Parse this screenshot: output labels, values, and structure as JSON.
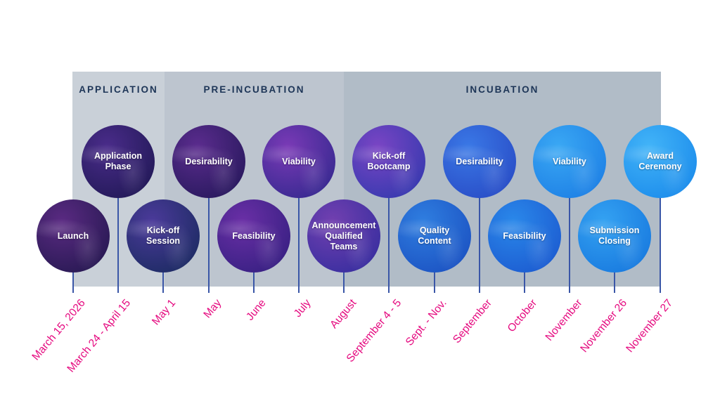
{
  "phases": [
    {
      "title": "APPLICATION",
      "color": "#c9d0d8"
    },
    {
      "title": "PRE-INCUBATION",
      "color": "#bdc5cf"
    },
    {
      "title": "INCUBATION",
      "color": "#b1bcc7"
    }
  ],
  "milestones": [
    {
      "label": "Launch",
      "date": "March 15, 2026",
      "row": "low",
      "gradient": [
        "#5a2a82",
        "#2a1a55"
      ]
    },
    {
      "label": "Application\nPhase",
      "date": "March 24 - April 15",
      "row": "high",
      "gradient": [
        "#4a2c8a",
        "#241a5a"
      ]
    },
    {
      "label": "Kick-off\nSession",
      "date": "May 1",
      "row": "low",
      "gradient": [
        "#4b3a9a",
        "#1f2c66"
      ]
    },
    {
      "label": "Desirability",
      "date": "May",
      "row": "high",
      "gradient": [
        "#5b2c8e",
        "#2b1a60"
      ]
    },
    {
      "label": "Feasibility",
      "date": "June",
      "row": "low",
      "gradient": [
        "#6a2fa6",
        "#3a2184"
      ]
    },
    {
      "label": "Viability",
      "date": "July",
      "row": "high",
      "gradient": [
        "#7a3ab6",
        "#3a2a92"
      ]
    },
    {
      "label": "Announcement\nQualified\nTeams",
      "date": "August",
      "row": "low",
      "gradient": [
        "#7240b0",
        "#3b2fa0"
      ]
    },
    {
      "label": "Kick-off\nBootcamp",
      "date": "September 4 - 5",
      "row": "high",
      "gradient": [
        "#7a45c4",
        "#3a3ab0"
      ]
    },
    {
      "label": "Quality\nContent",
      "date": "Sept. - Nov.",
      "row": "low",
      "gradient": [
        "#2f7ee0",
        "#1d55c4"
      ]
    },
    {
      "label": "Desirability",
      "date": "September",
      "row": "high",
      "gradient": [
        "#3a78e6",
        "#2a4fc8"
      ]
    },
    {
      "label": "Feasibility",
      "date": "October",
      "row": "low",
      "gradient": [
        "#2a88ea",
        "#1d5ed2"
      ]
    },
    {
      "label": "Viability",
      "date": "November",
      "row": "high",
      "gradient": [
        "#3aa8f4",
        "#1f82e6"
      ]
    },
    {
      "label": "Submission\nClosing",
      "date": "November 26",
      "row": "low",
      "gradient": [
        "#34a2f2",
        "#1a7ce0"
      ]
    },
    {
      "label": "Award\nCeremony",
      "date": "November 27",
      "row": "high",
      "gradient": [
        "#42b4f8",
        "#1e8eec"
      ]
    }
  ],
  "colors": {
    "date_text": "#e5097f",
    "stem": "#3a56a7",
    "phase_title": "#1d3557"
  }
}
